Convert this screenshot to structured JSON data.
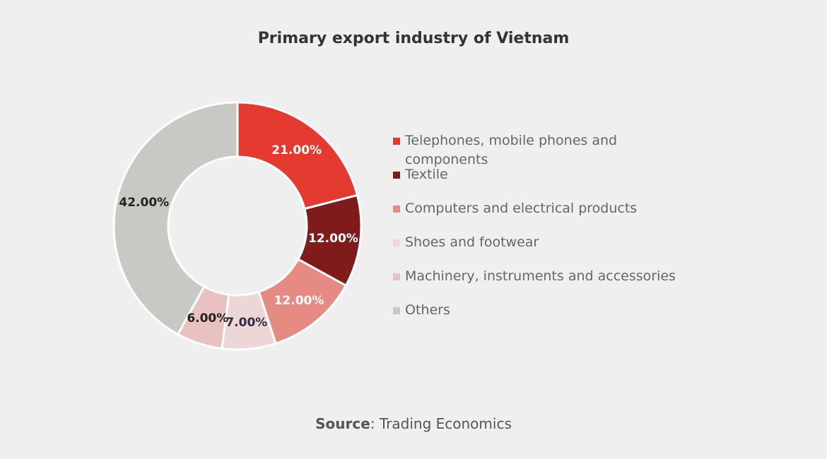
{
  "chart_data": {
    "type": "pie",
    "title": "Primary export industry of Vietnam",
    "donut": true,
    "categories": [
      "Telephones, mobile phones and components",
      "Textile",
      "Computers and electrical products",
      "Shoes and footwear",
      "Machinery, instruments and accessories",
      "Others"
    ],
    "values": [
      21,
      12,
      12,
      7,
      6,
      42
    ],
    "value_labels": [
      "21.00%",
      "12.00%",
      "12.00%",
      "7.00%",
      "6.00%",
      "42.00%"
    ],
    "colors": [
      "#e43a30",
      "#7f1c1b",
      "#e58b83",
      "#edd6d6",
      "#e8c1c1",
      "#c8c8c4"
    ],
    "label_colors": [
      "#ffffff",
      "#ffffff",
      "#ffffff",
      "#2f2a45",
      "#222222",
      "#222222"
    ],
    "legend_position": "right"
  },
  "source": {
    "prefix": "Source",
    "text": ": Trading Economics"
  }
}
